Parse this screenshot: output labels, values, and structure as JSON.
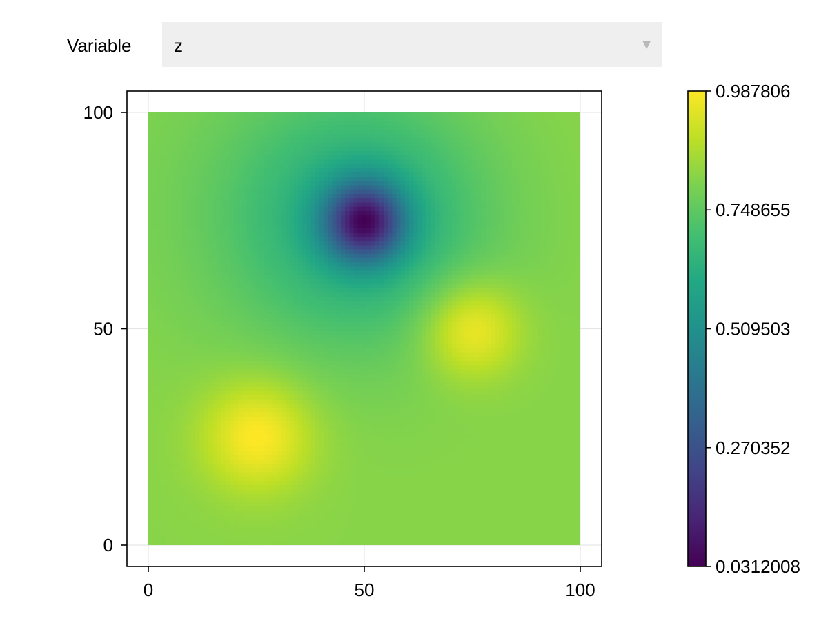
{
  "control": {
    "label": "Variable",
    "selected": "z",
    "arrow_icon": "triangle-down-icon"
  },
  "chart_data": {
    "type": "heatmap",
    "colormap": "viridis",
    "x_range": [
      0,
      100
    ],
    "y_range": [
      0,
      100
    ],
    "x_ticks": [
      "0",
      "50",
      "100"
    ],
    "y_ticks": [
      "0",
      "50",
      "100"
    ],
    "grid": true,
    "grid_resolution": 101,
    "features": [
      {
        "kind": "peak",
        "x": 25,
        "y": 25,
        "value": 0.987806
      },
      {
        "kind": "peak",
        "x": 75,
        "y": 50,
        "value": 0.98
      },
      {
        "kind": "minimum",
        "x": 50,
        "y": 75,
        "value": 0.0312008
      }
    ],
    "color_range": [
      0.0312008,
      0.987806
    ],
    "colorbar_ticks": [
      "0.0312008",
      "0.270352",
      "0.509503",
      "0.748655",
      "0.987806"
    ],
    "colors": {
      "grid": "#e6e6e6",
      "axis": "#000000",
      "dropdown_bg": "#efefef",
      "dropdown_arrow": "#b9b9b9"
    }
  }
}
